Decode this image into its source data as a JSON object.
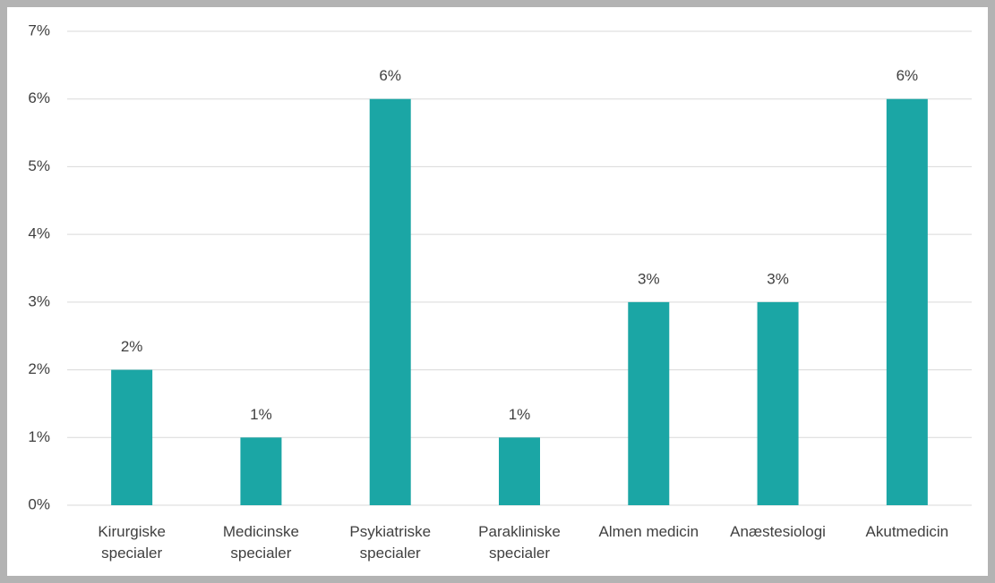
{
  "chart_data": {
    "type": "bar",
    "categories": [
      "Kirurgiske specialer",
      "Medicinske specialer",
      "Psykiatriske specialer",
      "Parakliniske specialer",
      "Almen medicin",
      "Anæstesiologi",
      "Akutmedicin"
    ],
    "values": [
      2,
      1,
      6,
      1,
      3,
      3,
      6
    ],
    "value_labels": [
      "2%",
      "1%",
      "6%",
      "1%",
      "3%",
      "3%",
      "6%"
    ],
    "color": "#1ba6a5",
    "ylim": [
      0,
      7
    ],
    "yticks": [
      {
        "value": 0,
        "label": "0%"
      },
      {
        "value": 1,
        "label": "1%"
      },
      {
        "value": 2,
        "label": "2%"
      },
      {
        "value": 3,
        "label": "3%"
      },
      {
        "value": 4,
        "label": "4%"
      },
      {
        "value": 5,
        "label": "5%"
      },
      {
        "value": 6,
        "label": "6%"
      },
      {
        "value": 7,
        "label": "7%"
      }
    ],
    "grid": true
  }
}
